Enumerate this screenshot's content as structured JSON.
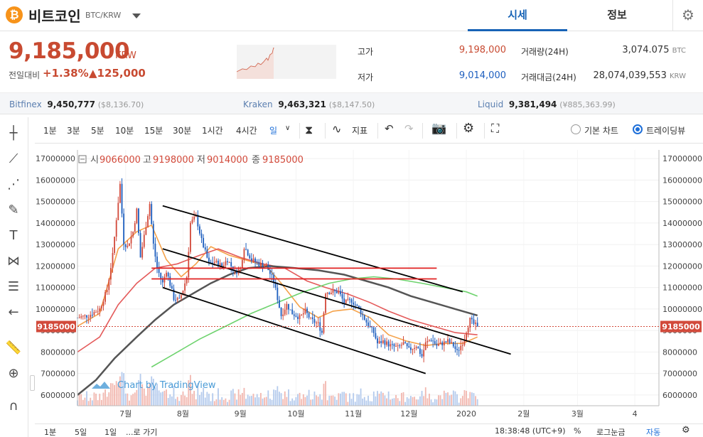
{
  "header": {
    "coin_symbol": "₿",
    "coin_name": "비트코인",
    "pair": "BTC/KRW",
    "tabs": [
      "시세",
      "정보"
    ],
    "settings_icon": "gear-icon"
  },
  "price": {
    "current": "9,185,000",
    "unit": "KRW",
    "change_label": "전일대비",
    "change_rate": "+1.38%",
    "change_amount": "▲125,000"
  },
  "stats": {
    "high_label": "고가",
    "high": "9,198,000",
    "low_label": "저가",
    "low": "9,014,000",
    "volume_label": "거래량(24H)",
    "volume": "3,074.075",
    "volume_unit": "BTC",
    "value_label": "거래대금(24H)",
    "value": "28,074,039,553",
    "value_unit": "KRW"
  },
  "exchanges": [
    {
      "name": "Bitfinex",
      "price": "9,450,777",
      "usd": "($8,136.70)"
    },
    {
      "name": "Kraken",
      "price": "9,463,321",
      "usd": "($8,147.50)"
    },
    {
      "name": "Liquid",
      "price": "9,381,494",
      "usd": "(¥885,363.99)"
    }
  ],
  "toolbar": {
    "intervals": [
      "1분",
      "3분",
      "5분",
      "10분",
      "15분",
      "30분",
      "1시간",
      "4시간",
      "일"
    ],
    "indicator_label": "지표",
    "view_basic": "기본 차트",
    "view_tradingview": "트레이딩뷰"
  },
  "footer": {
    "ranges": [
      "1분",
      "5일",
      "1일"
    ],
    "goto": "...로 가기",
    "time": "18:38:48 (UTC+9)",
    "percent": "%",
    "log": "로그눈금",
    "auto": "자동"
  },
  "chart_data": {
    "type": "candlestick",
    "ohlc_label": {
      "open_label": "시",
      "open": "9066000",
      "high_label": "고",
      "high": "9198000",
      "low_label": "저",
      "low": "9014000",
      "close_label": "종",
      "close": "9185000"
    },
    "watermark": "Chart by TradingView",
    "current_price_label": "9185000",
    "current_price": 9185000,
    "y_ticks": [
      6000000,
      7000000,
      8000000,
      9000000,
      10000000,
      11000000,
      12000000,
      13000000,
      14000000,
      15000000,
      16000000,
      17000000
    ],
    "ylim": [
      5500000,
      17400000
    ],
    "x_labels": [
      "7월",
      "8월",
      "9월",
      "10월",
      "11월",
      "12월",
      "2020",
      "2월",
      "3월",
      "4"
    ],
    "x_label_days": [
      0,
      31,
      62,
      92,
      123,
      153,
      184,
      215,
      244,
      275
    ],
    "xlim": [
      -26,
      288
    ],
    "close_keypoints": [
      [
        -26,
        9600000
      ],
      [
        -20,
        9700000
      ],
      [
        -14,
        10000000
      ],
      [
        -10,
        10900000
      ],
      [
        -7,
        12500000
      ],
      [
        -5,
        14200000
      ],
      [
        -3,
        15800000
      ],
      [
        -1,
        13100000
      ],
      [
        1,
        12900000
      ],
      [
        4,
        13600000
      ],
      [
        6,
        14600000
      ],
      [
        8,
        12400000
      ],
      [
        11,
        13900000
      ],
      [
        13,
        14900000
      ],
      [
        15,
        13000000
      ],
      [
        17,
        11900000
      ],
      [
        20,
        11200000
      ],
      [
        22,
        11800000
      ],
      [
        26,
        10500000
      ],
      [
        29,
        10400000
      ],
      [
        31,
        10900000
      ],
      [
        33,
        11500000
      ],
      [
        35,
        14000000
      ],
      [
        38,
        14300000
      ],
      [
        41,
        13200000
      ],
      [
        45,
        12100000
      ],
      [
        48,
        12200000
      ],
      [
        52,
        12000000
      ],
      [
        55,
        12300000
      ],
      [
        59,
        11700000
      ],
      [
        62,
        11900000
      ],
      [
        64,
        12900000
      ],
      [
        68,
        12300000
      ],
      [
        72,
        12100000
      ],
      [
        76,
        12000000
      ],
      [
        80,
        11300000
      ],
      [
        82,
        10500000
      ],
      [
        84,
        9700000
      ],
      [
        87,
        10200000
      ],
      [
        90,
        9800000
      ],
      [
        94,
        9600000
      ],
      [
        97,
        9900000
      ],
      [
        100,
        9500000
      ],
      [
        104,
        9300000
      ],
      [
        106,
        8900000
      ],
      [
        108,
        10800000
      ],
      [
        111,
        10800000
      ],
      [
        115,
        10800000
      ],
      [
        118,
        10300000
      ],
      [
        122,
        10400000
      ],
      [
        126,
        10000000
      ],
      [
        130,
        9400000
      ],
      [
        134,
        8900000
      ],
      [
        136,
        8400000
      ],
      [
        139,
        8500000
      ],
      [
        143,
        8300000
      ],
      [
        147,
        8200000
      ],
      [
        150,
        8400000
      ],
      [
        153,
        8100000
      ],
      [
        157,
        8300000
      ],
      [
        160,
        7800000
      ],
      [
        162,
        8400000
      ],
      [
        165,
        8600000
      ],
      [
        168,
        8300000
      ],
      [
        171,
        8400000
      ],
      [
        174,
        8500000
      ],
      [
        177,
        8300000
      ],
      [
        179,
        8000000
      ],
      [
        181,
        8300000
      ],
      [
        183,
        8600000
      ],
      [
        184,
        9000000
      ],
      [
        186,
        9500000
      ],
      [
        188,
        9300000
      ],
      [
        190,
        9185000
      ]
    ],
    "moving_averages": [
      {
        "color": "#f5a24a",
        "points": [
          [
            -26,
            9200000
          ],
          [
            -14,
            9800000
          ],
          [
            -4,
            12800000
          ],
          [
            6,
            13600000
          ],
          [
            14,
            13900000
          ],
          [
            22,
            12300000
          ],
          [
            30,
            11500000
          ],
          [
            38,
            12100000
          ],
          [
            46,
            12900000
          ],
          [
            56,
            12500000
          ],
          [
            64,
            12300000
          ],
          [
            76,
            12000000
          ],
          [
            84,
            11200000
          ],
          [
            94,
            10100000
          ],
          [
            104,
            9600000
          ],
          [
            112,
            9900000
          ],
          [
            122,
            10000000
          ],
          [
            132,
            9600000
          ],
          [
            142,
            8800000
          ],
          [
            152,
            8500000
          ],
          [
            162,
            8300000
          ],
          [
            172,
            8400000
          ],
          [
            182,
            8400000
          ],
          [
            190,
            8700000
          ]
        ]
      },
      {
        "color": "#e45a5a",
        "points": [
          [
            -26,
            8000000
          ],
          [
            -14,
            8700000
          ],
          [
            -4,
            10200000
          ],
          [
            6,
            11200000
          ],
          [
            16,
            11900000
          ],
          [
            28,
            12100000
          ],
          [
            40,
            12500000
          ],
          [
            50,
            12800000
          ],
          [
            62,
            12400000
          ],
          [
            74,
            12100000
          ],
          [
            86,
            11900000
          ],
          [
            98,
            11300000
          ],
          [
            108,
            11000000
          ],
          [
            120,
            10700000
          ],
          [
            132,
            10300000
          ],
          [
            142,
            9900000
          ],
          [
            154,
            9500000
          ],
          [
            166,
            9200000
          ],
          [
            178,
            8900000
          ],
          [
            190,
            8800000
          ]
        ]
      },
      {
        "color": "#555555",
        "points": [
          [
            -26,
            6000000
          ],
          [
            -16,
            6700000
          ],
          [
            -6,
            7700000
          ],
          [
            6,
            8700000
          ],
          [
            16,
            9500000
          ],
          [
            26,
            10200000
          ],
          [
            36,
            10700000
          ],
          [
            46,
            11200000
          ],
          [
            56,
            11600000
          ],
          [
            66,
            11900000
          ],
          [
            78,
            12000000
          ],
          [
            92,
            11900000
          ],
          [
            104,
            11800000
          ],
          [
            118,
            11600000
          ],
          [
            130,
            11300000
          ],
          [
            142,
            11000000
          ],
          [
            154,
            10600000
          ],
          [
            166,
            10300000
          ],
          [
            178,
            10000000
          ],
          [
            190,
            9700000
          ]
        ]
      },
      {
        "color": "#6ed36e",
        "points": [
          [
            14,
            7300000
          ],
          [
            26,
            7900000
          ],
          [
            40,
            8600000
          ],
          [
            54,
            9200000
          ],
          [
            68,
            9800000
          ],
          [
            82,
            10300000
          ],
          [
            96,
            10800000
          ],
          [
            110,
            11200000
          ],
          [
            122,
            11400000
          ],
          [
            134,
            11500000
          ],
          [
            146,
            11400000
          ],
          [
            160,
            11200000
          ],
          [
            172,
            11000000
          ],
          [
            184,
            10800000
          ],
          [
            190,
            10600000
          ]
        ]
      }
    ],
    "trend_lines": [
      {
        "color": "#000000",
        "from": [
          20,
          14800000
        ],
        "to": [
          182,
          10800000
        ]
      },
      {
        "color": "#000000",
        "from": [
          20,
          12800000
        ],
        "to": [
          208,
          7900000
        ]
      },
      {
        "color": "#000000",
        "from": [
          20,
          11000000
        ],
        "to": [
          162,
          7000000
        ]
      },
      {
        "color": "#e02020",
        "from": [
          14,
          11900000
        ],
        "to": [
          168,
          11900000
        ]
      },
      {
        "color": "#e02020",
        "from": [
          14,
          11400000
        ],
        "to": [
          168,
          11400000
        ]
      }
    ]
  }
}
